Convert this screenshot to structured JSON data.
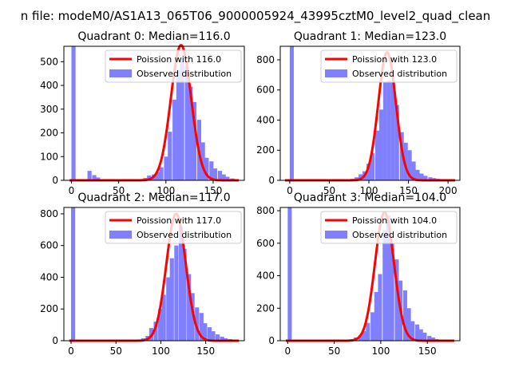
{
  "suptitle": "n file: modeM0/AS1A13_065T06_9000005924_43995cztM0_level2_quad_clean",
  "colors": {
    "hist": "#8080ff",
    "poisson": "#ff0000",
    "axes": "#000000"
  },
  "chart_data": [
    {
      "type": "bar",
      "title": "Quadrant 0: Median=116.0",
      "median": 116.0,
      "xlim": [
        -8,
        183
      ],
      "ylim": [
        0,
        565
      ],
      "xticks": [
        0,
        50,
        100,
        150
      ],
      "yticks": [
        0,
        100,
        200,
        300,
        400,
        500
      ],
      "bin_width": 4.35,
      "bins": [
        [
          0,
          565
        ],
        [
          17,
          40
        ],
        [
          22,
          22
        ],
        [
          26,
          12
        ],
        [
          50,
          5
        ],
        [
          76,
          10
        ],
        [
          80,
          20
        ],
        [
          85,
          25
        ],
        [
          89,
          35
        ],
        [
          93,
          55
        ],
        [
          98,
          100
        ],
        [
          102,
          205
        ],
        [
          107,
          340
        ],
        [
          111,
          465
        ],
        [
          115,
          505
        ],
        [
          120,
          480
        ],
        [
          124,
          395
        ],
        [
          128,
          330
        ],
        [
          133,
          255
        ],
        [
          137,
          160
        ],
        [
          141,
          95
        ],
        [
          146,
          80
        ],
        [
          150,
          50
        ],
        [
          155,
          40
        ],
        [
          159,
          25
        ],
        [
          163,
          15
        ],
        [
          168,
          8
        ],
        [
          172,
          4
        ]
      ],
      "curve": {
        "name": "Poission with 116.0",
        "lambda": 116.0,
        "peak": 570
      },
      "legend": [
        "Poission with 116.0",
        "Observed distribution"
      ]
    },
    {
      "type": "bar",
      "title": "Quadrant 1: Median=123.0",
      "median": 123.0,
      "xlim": [
        -12,
        215
      ],
      "ylim": [
        0,
        890
      ],
      "xticks": [
        0,
        50,
        100,
        150,
        200
      ],
      "yticks": [
        0,
        200,
        400,
        600,
        800
      ],
      "bin_width": 5.13,
      "bins": [
        [
          0,
          890
        ],
        [
          51,
          5
        ],
        [
          77,
          10
        ],
        [
          82,
          20
        ],
        [
          87,
          40
        ],
        [
          92,
          60
        ],
        [
          97,
          110
        ],
        [
          102,
          180
        ],
        [
          108,
          330
        ],
        [
          113,
          470
        ],
        [
          118,
          650
        ],
        [
          123,
          660
        ],
        [
          128,
          650
        ],
        [
          133,
          500
        ],
        [
          139,
          320
        ],
        [
          144,
          250
        ],
        [
          149,
          200
        ],
        [
          154,
          125
        ],
        [
          159,
          70
        ],
        [
          164,
          45
        ],
        [
          169,
          30
        ],
        [
          175,
          20
        ],
        [
          180,
          15
        ],
        [
          185,
          10
        ],
        [
          190,
          5
        ]
      ],
      "curve": {
        "name": "Poission with 123.0",
        "lambda": 123.0,
        "peak": 850
      },
      "legend": [
        "Poission with 123.0",
        "Observed distribution"
      ]
    },
    {
      "type": "bar",
      "title": "Quadrant 2: Median=117.0",
      "median": 117.0,
      "xlim": [
        -8,
        193
      ],
      "ylim": [
        0,
        840
      ],
      "xticks": [
        0,
        50,
        100,
        150
      ],
      "yticks": [
        0,
        200,
        400,
        600,
        800
      ],
      "bin_width": 4.6,
      "bins": [
        [
          0,
          840
        ],
        [
          74,
          5
        ],
        [
          78,
          15
        ],
        [
          83,
          30
        ],
        [
          87,
          80
        ],
        [
          92,
          120
        ],
        [
          97,
          200
        ],
        [
          101,
          290
        ],
        [
          106,
          400
        ],
        [
          110,
          520
        ],
        [
          115,
          600
        ],
        [
          120,
          720
        ],
        [
          124,
          580
        ],
        [
          129,
          420
        ],
        [
          133,
          300
        ],
        [
          138,
          210
        ],
        [
          143,
          175
        ],
        [
          147,
          110
        ],
        [
          152,
          85
        ],
        [
          156,
          60
        ],
        [
          161,
          40
        ],
        [
          166,
          25
        ],
        [
          170,
          15
        ],
        [
          175,
          10
        ],
        [
          179,
          5
        ]
      ],
      "curve": {
        "name": "Poission with 117.0",
        "lambda": 117.0,
        "peak": 800
      },
      "legend": [
        "Poission with 117.0",
        "Observed distribution"
      ]
    },
    {
      "type": "bar",
      "title": "Quadrant 3: Median=104.0",
      "median": 104.0,
      "xlim": [
        -8,
        185
      ],
      "ylim": [
        0,
        820
      ],
      "xticks": [
        0,
        50,
        100,
        150
      ],
      "yticks": [
        0,
        200,
        400,
        600,
        800
      ],
      "bin_width": 4.35,
      "bins": [
        [
          0,
          820
        ],
        [
          63,
          5
        ],
        [
          67,
          10
        ],
        [
          71,
          20
        ],
        [
          76,
          35
        ],
        [
          80,
          60
        ],
        [
          84,
          110
        ],
        [
          89,
          175
        ],
        [
          93,
          300
        ],
        [
          97,
          410
        ],
        [
          102,
          680
        ],
        [
          106,
          770
        ],
        [
          110,
          600
        ],
        [
          115,
          500
        ],
        [
          119,
          370
        ],
        [
          124,
          310
        ],
        [
          128,
          200
        ],
        [
          132,
          120
        ],
        [
          137,
          100
        ],
        [
          141,
          70
        ],
        [
          145,
          50
        ],
        [
          150,
          30
        ],
        [
          154,
          20
        ],
        [
          158,
          10
        ],
        [
          163,
          5
        ]
      ],
      "curve": {
        "name": "Poission with 104.0",
        "lambda": 104.0,
        "peak": 790
      },
      "legend": [
        "Poission with 104.0",
        "Observed distribution"
      ]
    }
  ]
}
